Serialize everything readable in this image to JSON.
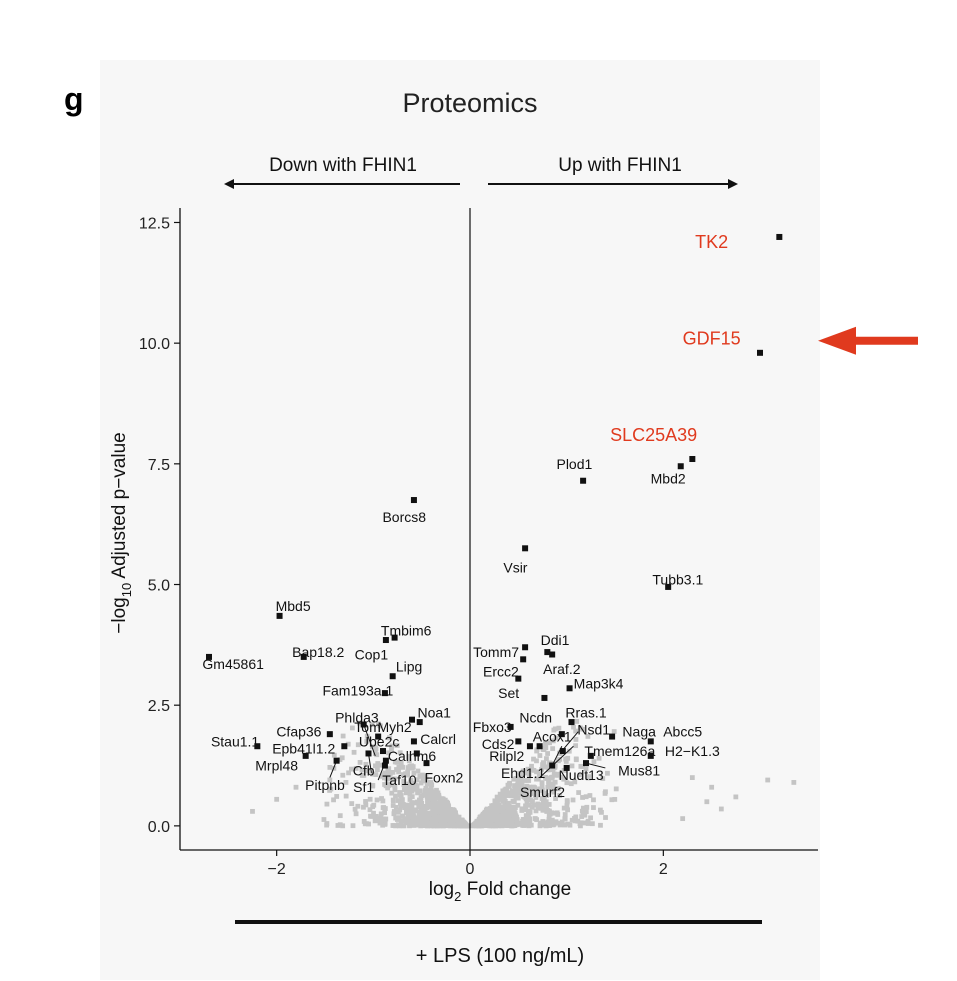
{
  "panel_letter": "g",
  "lps_label": "+ LPS (100 ng/mL)",
  "colors": {
    "sig": "#111111",
    "ns": "#c4c4c4",
    "highlight": "#e03a1e",
    "axis": "#111111"
  },
  "chart_data": {
    "type": "scatter",
    "title": "Proteomics",
    "subtitle_left": "Down with FHIN1",
    "subtitle_right": "Up with FHIN1",
    "xlabel": {
      "pre": "log",
      "sub": "2",
      "post": " Fold change"
    },
    "ylabel": {
      "pre": "−log",
      "sub": "10",
      "post": " Adjusted p−value"
    },
    "xlim": [
      -3.0,
      3.6
    ],
    "ylim": [
      -0.5,
      12.8
    ],
    "xticks": [
      -2,
      0,
      2
    ],
    "xtick_labels": [
      "−2",
      "0",
      "2"
    ],
    "yticks": [
      0,
      2.5,
      5,
      7.5,
      10,
      12.5
    ],
    "ytick_labels": [
      "0.0",
      "2.5",
      "5.0",
      "7.5",
      "10.0",
      "12.5"
    ],
    "vline_x": 0,
    "highlight_labels": [
      {
        "text": "TK2",
        "x": 2.5,
        "y": 12.1
      },
      {
        "text": "GDF15",
        "x": 2.5,
        "y": 10.1
      },
      {
        "text": "SLC25A39",
        "x": 1.9,
        "y": 8.1
      }
    ],
    "arrow_target": {
      "x": 3.6,
      "y": 10.05
    },
    "points": [
      {
        "label": "TK2",
        "x": 3.2,
        "y": 12.2,
        "highlight": true
      },
      {
        "label": "GDF15",
        "x": 3.0,
        "y": 9.8,
        "highlight": true
      },
      {
        "label": "SLC25A39",
        "x": 2.3,
        "y": 7.6,
        "highlight": true
      },
      {
        "label": "Mbd2",
        "x": 2.18,
        "y": 7.45
      },
      {
        "label": "Plod1",
        "x": 1.17,
        "y": 7.15
      },
      {
        "label": "Borcs8",
        "x": -0.58,
        "y": 6.75
      },
      {
        "label": "Vsir",
        "x": 0.57,
        "y": 5.75
      },
      {
        "label": "Tubb3.1",
        "x": 2.05,
        "y": 4.95
      },
      {
        "label": "Mbd5",
        "x": -1.97,
        "y": 4.35
      },
      {
        "label": "Tmbim6",
        "x": -0.78,
        "y": 3.9
      },
      {
        "label": "Cop1",
        "x": -0.87,
        "y": 3.85
      },
      {
        "label": "Bap18.2",
        "x": -1.72,
        "y": 3.5
      },
      {
        "label": "Gm45861",
        "x": -2.7,
        "y": 3.5
      },
      {
        "label": "Lipg",
        "x": -0.8,
        "y": 3.1
      },
      {
        "label": "Fam193a.1",
        "x": -0.88,
        "y": 2.75
      },
      {
        "label": "Ddi1",
        "x": 0.8,
        "y": 3.6
      },
      {
        "label": "Tomm7",
        "x": 0.57,
        "y": 3.7
      },
      {
        "label": "Ercc2",
        "x": 0.55,
        "y": 3.45
      },
      {
        "label": "Araf.2",
        "x": 0.85,
        "y": 3.55
      },
      {
        "label": "Set",
        "x": 0.5,
        "y": 3.05
      },
      {
        "label": "Map3k4",
        "x": 1.03,
        "y": 2.85
      },
      {
        "label": "Ncdn",
        "x": 0.77,
        "y": 2.65
      },
      {
        "label": "Phlda3",
        "x": -1.1,
        "y": 2.1
      },
      {
        "label": "Noa1",
        "x": -0.52,
        "y": 2.15
      },
      {
        "label": "Myh2",
        "x": -0.6,
        "y": 2.2
      },
      {
        "label": "Tom",
        "x": -0.95,
        "y": 1.85
      },
      {
        "label": "Cfap36",
        "x": -1.45,
        "y": 1.9
      },
      {
        "label": "Stau1.1",
        "x": -2.2,
        "y": 1.65
      },
      {
        "label": "Ube2c",
        "x": -0.9,
        "y": 1.55
      },
      {
        "label": "Calcrl",
        "x": -0.58,
        "y": 1.75
      },
      {
        "label": "Epb41l1.2",
        "x": -1.3,
        "y": 1.65
      },
      {
        "label": "Mrpl48",
        "x": -1.7,
        "y": 1.45
      },
      {
        "label": "Calhm6",
        "x": -0.55,
        "y": 1.5
      },
      {
        "label": "Cfb",
        "x": -1.05,
        "y": 1.5
      },
      {
        "label": "Pitpnb",
        "x": -1.38,
        "y": 1.35
      },
      {
        "label": "Sf1",
        "x": -0.87,
        "y": 1.35
      },
      {
        "label": "Taf10",
        "x": -0.88,
        "y": 1.25
      },
      {
        "label": "Foxn2",
        "x": -0.45,
        "y": 1.3
      },
      {
        "label": "Fbxo3",
        "x": 0.42,
        "y": 2.05
      },
      {
        "label": "Rras.1",
        "x": 1.05,
        "y": 2.15
      },
      {
        "label": "Cds2",
        "x": 0.5,
        "y": 1.75
      },
      {
        "label": "Acox1",
        "x": 0.62,
        "y": 1.65
      },
      {
        "label": "Nsd1",
        "x": 0.95,
        "y": 1.9
      },
      {
        "label": "Naga",
        "x": 1.47,
        "y": 1.85
      },
      {
        "label": "Abcc5",
        "x": 1.87,
        "y": 1.75
      },
      {
        "label": "Rilpl2",
        "x": 0.72,
        "y": 1.65
      },
      {
        "label": "Tmem126a",
        "x": 1.25,
        "y": 1.45
      },
      {
        "label": "H2−K1.3",
        "x": 1.87,
        "y": 1.45
      },
      {
        "label": "Ehd1.1",
        "x": 0.96,
        "y": 1.55
      },
      {
        "label": "Mus81",
        "x": 1.2,
        "y": 1.3
      },
      {
        "label": "Nudt13",
        "x": 1.0,
        "y": 1.2
      },
      {
        "label": "Smurf2",
        "x": 0.85,
        "y": 1.25
      }
    ],
    "labels": [
      {
        "text": "Mbd2",
        "x": 2.05,
        "y": 7.2
      },
      {
        "text": "Plod1",
        "x": 1.08,
        "y": 7.5
      },
      {
        "text": "Borcs8",
        "x": -0.68,
        "y": 6.4
      },
      {
        "text": "Vsir",
        "x": 0.47,
        "y": 5.35
      },
      {
        "text": "Tubb3.1",
        "x": 2.15,
        "y": 5.1
      },
      {
        "text": "Mbd5",
        "x": -1.83,
        "y": 4.55
      },
      {
        "text": "Tmbim6",
        "x": -0.66,
        "y": 4.05
      },
      {
        "text": "Cop1",
        "x": -1.02,
        "y": 3.55
      },
      {
        "text": "Bap18.2",
        "x": -1.57,
        "y": 3.6
      },
      {
        "text": "Gm45861",
        "x": -2.45,
        "y": 3.35
      },
      {
        "text": "Lipg",
        "x": -0.63,
        "y": 3.3
      },
      {
        "text": "Fam193a.1",
        "x": -1.16,
        "y": 2.8
      },
      {
        "text": "Ddi1",
        "x": 0.88,
        "y": 3.85
      },
      {
        "text": "Tomm7",
        "x": 0.27,
        "y": 3.6
      },
      {
        "text": "Ercc2",
        "x": 0.32,
        "y": 3.2
      },
      {
        "text": "Araf.2",
        "x": 0.95,
        "y": 3.25
      },
      {
        "text": "Set",
        "x": 0.4,
        "y": 2.75
      },
      {
        "text": "Map3k4",
        "x": 1.33,
        "y": 2.95
      },
      {
        "text": "Ncdn",
        "x": 0.68,
        "y": 2.25
      },
      {
        "text": "Phlda3",
        "x": -1.17,
        "y": 2.25
      },
      {
        "text": "Noa1",
        "x": -0.37,
        "y": 2.35
      },
      {
        "text": "Myh2",
        "x": -0.78,
        "y": 2.05
      },
      {
        "text": "Tom",
        "x": -1.06,
        "y": 2.05
      },
      {
        "text": "Cfap36",
        "x": -1.77,
        "y": 1.95
      },
      {
        "text": "Stau1.1",
        "x": -2.43,
        "y": 1.75
      },
      {
        "text": "Ube2c",
        "x": -0.94,
        "y": 1.75
      },
      {
        "text": "Calcrl",
        "x": -0.33,
        "y": 1.8
      },
      {
        "text": "Epb41l1.2",
        "x": -1.72,
        "y": 1.6
      },
      {
        "text": "Mrpl48",
        "x": -2.0,
        "y": 1.25
      },
      {
        "text": "Calhm6",
        "x": -0.6,
        "y": 1.45
      },
      {
        "text": "Cfb",
        "x": -1.1,
        "y": 1.15
      },
      {
        "text": "Pitpnb",
        "x": -1.5,
        "y": 0.85
      },
      {
        "text": "Sf1",
        "x": -1.1,
        "y": 0.8
      },
      {
        "text": "Taf10",
        "x": -0.73,
        "y": 0.95
      },
      {
        "text": "Foxn2",
        "x": -0.27,
        "y": 1.0
      },
      {
        "text": "Fbxo3",
        "x": 0.23,
        "y": 2.05
      },
      {
        "text": "Rras.1",
        "x": 1.2,
        "y": 2.35
      },
      {
        "text": "Cds2",
        "x": 0.29,
        "y": 1.7
      },
      {
        "text": "Acox1",
        "x": 0.85,
        "y": 1.85
      },
      {
        "text": "Nsd1",
        "x": 1.28,
        "y": 2.0
      },
      {
        "text": "Naga",
        "x": 1.75,
        "y": 1.95
      },
      {
        "text": "Abcc5",
        "x": 2.2,
        "y": 1.95
      },
      {
        "text": "Rilpl2",
        "x": 0.38,
        "y": 1.45
      },
      {
        "text": "Tmem126a",
        "x": 1.55,
        "y": 1.55
      },
      {
        "text": "H2−K1.3",
        "x": 2.3,
        "y": 1.55
      },
      {
        "text": "Ehd1.1",
        "x": 0.55,
        "y": 1.1
      },
      {
        "text": "Mus81",
        "x": 1.75,
        "y": 1.15
      },
      {
        "text": "Nudt13",
        "x": 1.15,
        "y": 1.05
      },
      {
        "text": "Smurf2",
        "x": 0.75,
        "y": 0.7
      }
    ],
    "leader_lines": [
      {
        "from": [
          -1.1,
          2.1
        ],
        "to": [
          -0.98,
          1.45
        ]
      },
      {
        "from": [
          -1.05,
          1.5
        ],
        "to": [
          -1.02,
          1.1
        ]
      },
      {
        "from": [
          -1.38,
          1.35
        ],
        "to": [
          -1.45,
          1.0
        ]
      },
      {
        "from": [
          -0.87,
          1.35
        ],
        "to": [
          -0.95,
          0.95
        ]
      },
      {
        "from": [
          0.95,
          1.55
        ],
        "to": [
          1.12,
          1.95
        ]
      },
      {
        "from": [
          1.2,
          1.3
        ],
        "to": [
          1.4,
          1.2
        ]
      },
      {
        "from": [
          0.85,
          1.25
        ],
        "to": [
          0.95,
          1.65
        ]
      },
      {
        "from": [
          0.72,
          1.0
        ],
        "to": [
          1.07,
          1.65
        ]
      }
    ]
  }
}
